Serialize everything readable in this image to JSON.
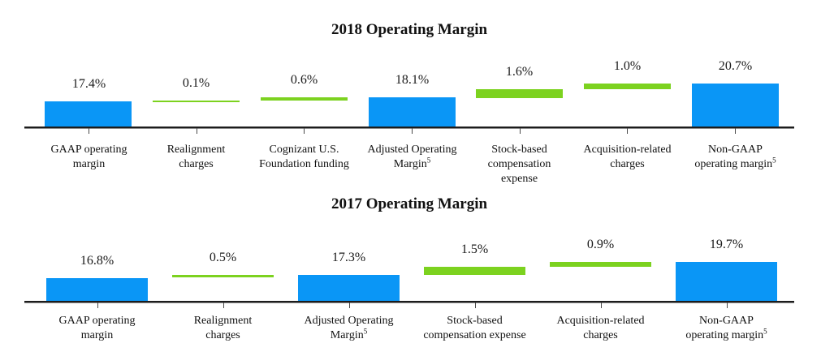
{
  "colors": {
    "total_bar": "#0a96f6",
    "delta_bar": "#7cd21f",
    "axis": "#1c1c1c",
    "tick": "#4a4a4a",
    "text": "#111111"
  },
  "chart_data": [
    {
      "type": "bar",
      "subtype": "waterfall",
      "title": "2018 Operating Margin",
      "xlabel": "",
      "ylabel": "",
      "ylim": [
        12.7,
        22
      ],
      "grid": false,
      "legend": "none",
      "unit": "%",
      "categories": [
        {
          "label_lines": [
            "GAAP operating",
            "margin"
          ],
          "display": "17.4%",
          "value": 17.4,
          "kind": "total"
        },
        {
          "label_lines": [
            "Realignment",
            "charges"
          ],
          "display": "0.1%",
          "value": 0.1,
          "kind": "delta"
        },
        {
          "label_lines": [
            "Cognizant U.S.",
            "Foundation funding"
          ],
          "display": "0.6%",
          "value": 0.6,
          "kind": "delta"
        },
        {
          "label_lines": [
            "Adjusted Operating",
            "Margin"
          ],
          "sup": "5",
          "display": "18.1%",
          "value": 18.1,
          "kind": "total"
        },
        {
          "label_lines": [
            "Stock-based",
            "compensation",
            "expense"
          ],
          "display": "1.6%",
          "value": 1.6,
          "kind": "delta"
        },
        {
          "label_lines": [
            "Acquisition-related",
            "charges"
          ],
          "display": "1.0%",
          "value": 1.0,
          "kind": "delta"
        },
        {
          "label_lines": [
            "Non-GAAP",
            "operating margin"
          ],
          "sup": "5",
          "display": "20.7%",
          "value": 20.7,
          "kind": "total"
        }
      ]
    },
    {
      "type": "bar",
      "subtype": "waterfall",
      "title": "2017 Operating Margin",
      "xlabel": "",
      "ylabel": "",
      "ylim": [
        12.5,
        22
      ],
      "grid": false,
      "legend": "none",
      "unit": "%",
      "categories": [
        {
          "label_lines": [
            "GAAP operating",
            "margin"
          ],
          "display": "16.8%",
          "value": 16.8,
          "kind": "total"
        },
        {
          "label_lines": [
            "Realignment",
            "charges"
          ],
          "display": "0.5%",
          "value": 0.5,
          "kind": "delta"
        },
        {
          "label_lines": [
            "Adjusted Operating",
            "Margin"
          ],
          "sup": "5",
          "display": "17.3%",
          "value": 17.3,
          "kind": "total"
        },
        {
          "label_lines": [
            "Stock-based",
            "compensation expense"
          ],
          "display": "1.5%",
          "value": 1.5,
          "kind": "delta"
        },
        {
          "label_lines": [
            "Acquisition-related",
            "charges"
          ],
          "display": "0.9%",
          "value": 0.9,
          "kind": "delta"
        },
        {
          "label_lines": [
            "Non-GAAP",
            "operating margin"
          ],
          "sup": "5",
          "display": "19.7%",
          "value": 19.7,
          "kind": "total"
        }
      ]
    }
  ]
}
